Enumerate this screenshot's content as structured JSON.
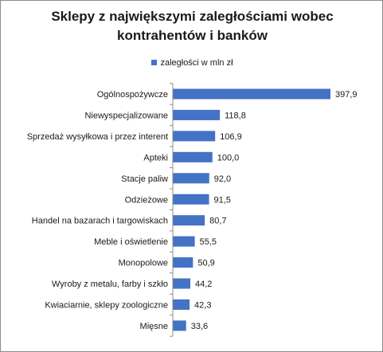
{
  "chart_data": {
    "type": "bar",
    "orientation": "horizontal",
    "title_lines": [
      "Sklepy z największymi zaległościami wobec",
      "kontrahentów i banków"
    ],
    "legend": {
      "placement": "top",
      "entries": [
        "zaległości w mln zł"
      ]
    },
    "categories": [
      "Ogólnospożywcze",
      "Niewyspecjalizowane",
      "Sprzedaż wysyłkowa i przez interent",
      "Apteki",
      "Stacje paliw",
      "Odzieżowe",
      "Handel na bazarach i targowiskach",
      "Meble i oświetlenie",
      "Monopolowe",
      "Wyroby z metalu, farby i szkło",
      "Kwiaciarnie, sklepy zoologiczne",
      "Mięsne"
    ],
    "series": [
      {
        "name": "zaległości w mln zł",
        "color": "#4472c4",
        "values": [
          397.9,
          118.8,
          106.9,
          100.0,
          92.0,
          91.5,
          80.7,
          55.5,
          50.9,
          44.2,
          42.3,
          33.6
        ],
        "value_labels": [
          "397,9",
          "118,8",
          "106,9",
          "100,0",
          "92,0",
          "91,5",
          "80,7",
          "55,5",
          "50,9",
          "44,2",
          "42,3",
          "33,6"
        ]
      }
    ],
    "xlim": [
      0,
      397.9
    ],
    "grid": false
  }
}
